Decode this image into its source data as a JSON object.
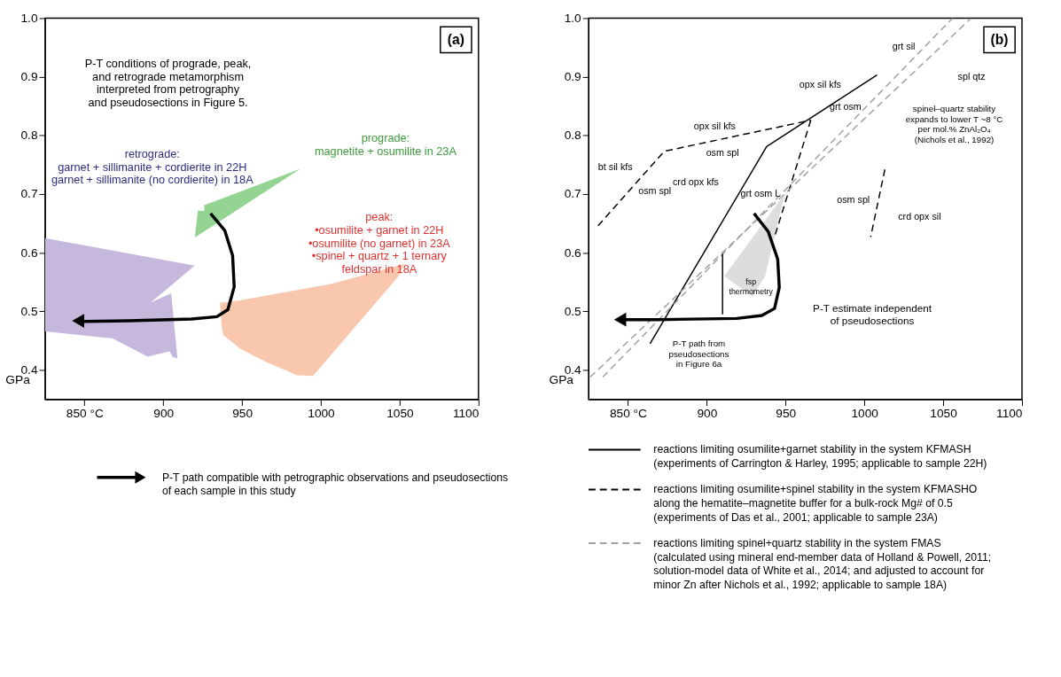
{
  "chart_data": [
    {
      "type": "line",
      "title": "(a)",
      "ylabel": "GPa",
      "xlim": [
        825,
        1100
      ],
      "ylim": [
        0.35,
        1.0
      ],
      "xticks": [
        {
          "value": 850,
          "label": "850 °C"
        },
        900,
        950,
        1000,
        1050,
        1100
      ],
      "yticks": [
        0.4,
        0.5,
        0.6,
        0.7,
        0.8,
        0.9,
        {
          "value": 1.0,
          "label": "1.0"
        }
      ],
      "grid": false,
      "legend": "bottom",
      "series": [
        {
          "type": "area",
          "color": "#c5b8dc",
          "x": [
            825,
            920,
            892,
            905,
            909,
            906,
            904,
            890,
            868,
            825
          ],
          "values": [
            0.625,
            0.578,
            0.515,
            0.531,
            0.42,
            0.422,
            0.432,
            0.423,
            0.454,
            0.466
          ]
        },
        {
          "type": "area",
          "color": "#93d493",
          "x": [
            987,
            926,
            926,
            922,
            920
          ],
          "values": [
            0.743,
            0.681,
            0.671,
            0.672,
            0.626
          ]
        },
        {
          "type": "area",
          "color": "#f9c6ae",
          "x": [
            936,
            947,
            1007,
            1053,
            1049,
            995,
            985,
            965,
            949,
            938,
            937
          ],
          "values": [
            0.515,
            0.518,
            0.547,
            0.581,
            0.559,
            0.39,
            0.391,
            0.414,
            0.436,
            0.46,
            0.477
          ]
        },
        {
          "name": "P-T path compatible with petrographic observations and pseudosections\nof each sample in this study",
          "color": "#000000",
          "x": [
            930,
            939,
            944,
            945,
            941,
            934,
            918,
            878,
            850,
            846
          ],
          "values": [
            0.667,
            0.638,
            0.595,
            0.542,
            0.503,
            0.491,
            0.487,
            0.484,
            0.483,
            0.484
          ]
        }
      ],
      "annotations": [
        "P-T conditions of prograde, peak,\nand retrograde metamorphism\ninterpreted from petrography\nand pseudosections in Figure 5.",
        "retrograde:\ngarnet + sillimanite + cordierite in 22H\ngarnet + sillimanite (no cordierite) in 18A",
        "prograde:\nmagnetite + osumilite in 23A",
        "peak:\n•osumilite + garnet in 22H\n•osumilite (no garnet) in 23A\n•spinel + quartz + 1 ternary\nfeldspar in 18A"
      ]
    },
    {
      "type": "line",
      "title": "(b)",
      "ylabel": "GPa",
      "xlim": [
        825,
        1100
      ],
      "ylim": [
        0.35,
        1.0
      ],
      "xticks": [
        {
          "value": 850,
          "label": "850 °C"
        },
        900,
        950,
        1000,
        1050,
        1100
      ],
      "yticks": [
        0.4,
        0.5,
        0.6,
        0.7,
        0.8,
        0.9,
        {
          "value": 1.0,
          "label": "1.0"
        }
      ],
      "grid": false,
      "legend": "bottom",
      "series": [
        {
          "type": "area",
          "color": "#dddddd",
          "x": [
            951,
            911,
            929,
            937,
            948
          ],
          "values": [
            0.706,
            0.56,
            0.526,
            0.56,
            0.684
          ]
        },
        {
          "name": "reactions limiting osumilite+garnet stability in the system KFMASH\n(experiments of Carrington & Harley, 1995; applicable to sample 22H)",
          "color": "#000000",
          "line_style": "solid",
          "x": [
            864,
            938,
            1008
          ],
          "values": [
            0.445,
            0.781,
            0.903
          ]
        },
        {
          "name": "reactions limiting osumilite+spinel stability in the system KFMASHO\nalong the hematite–magnetite buffer for a bulk-rock Mg# of 0.5\n(experiments of Das et al., 2001; applicable to sample 23A)",
          "color": "#000000",
          "line_style": "dashed",
          "x": [
            831,
            873,
            966
          ],
          "values": [
            0.646,
            0.773,
            0.826
          ]
        },
        {
          "color": "#000000",
          "line_style": "dashed",
          "x": [
            966,
            943
          ],
          "values": [
            0.826,
            0.627
          ]
        },
        {
          "color": "#000000",
          "line_style": "dashed",
          "x": [
            1013,
            1004
          ],
          "values": [
            0.742,
            0.627
          ]
        },
        {
          "name": "reactions limiting spinel+quartz stability in the system FMAS\n(calculated using mineral end-member data of Holland & Powell, 2011;\nsolution-model data of White et al., 2014; and adjusted to account for\nminor Zn after Nichols et al., 1992;  applicable to sample 18A)",
          "color": "#a0a0a0",
          "line_style": "dashed",
          "x": [
            826,
            1067
          ],
          "values": [
            0.388,
            0.998
          ]
        },
        {
          "color": "#a0a0a0",
          "line_style": "dashed",
          "x": [
            834,
            1056
          ],
          "values": [
            0.388,
            1.0
          ]
        },
        {
          "color": "#000000",
          "line_style": "solid",
          "x": [
            910,
            910
          ],
          "values": [
            0.598,
            0.495
          ]
        },
        {
          "color": "#000000",
          "x": [
            930,
            939,
            945,
            946,
            943,
            935,
            919,
            869,
            850,
            845
          ],
          "values": [
            0.667,
            0.636,
            0.589,
            0.541,
            0.505,
            0.493,
            0.488,
            0.486,
            0.486,
            0.486
          ]
        }
      ],
      "annotations": [
        "bt sil kfs",
        "osm spl",
        "opx sil kfs",
        "osm spl",
        "crd opx kfs",
        "grt osm L",
        "opx sil kfs",
        "grt osm",
        "grt sil",
        "spl qtz",
        "osm spl",
        "crd opx sil",
        "spinel–quartz stability\nexpands to lower T ~8 °C\nper mol.% ZnAl₂O₄\n(Nichols et al., 1992)",
        "P-T estimate independent\nof pseudosections",
        "P-T path from\npseudosections\nin Figure 6a",
        "fsp\nthermometry"
      ]
    }
  ]
}
